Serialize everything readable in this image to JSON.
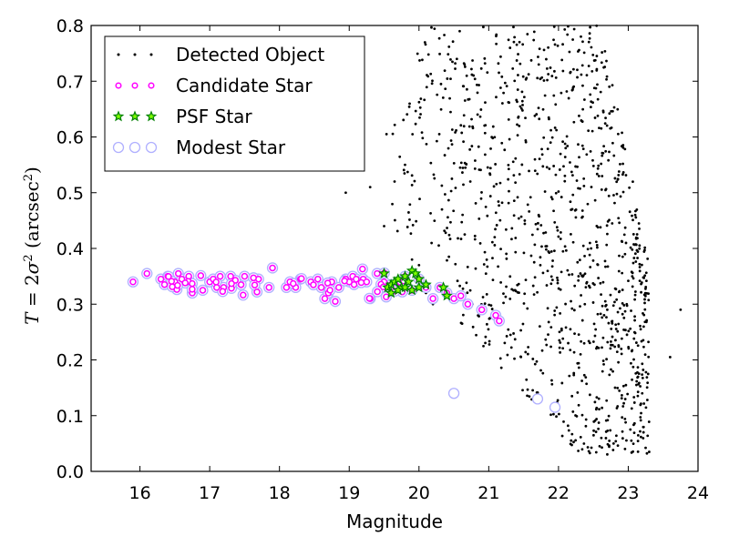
{
  "chart_data": {
    "type": "scatter",
    "xlabel": "Magnitude",
    "ylabel": {
      "T": "T",
      "eq": " = 2",
      "sigma": "σ",
      "sq": "2",
      "unit_open": " (arcsec",
      "unit_sq": "2",
      "unit_close": ")"
    },
    "xlim": [
      15.3,
      24
    ],
    "ylim": [
      0,
      0.8
    ],
    "xticks": [
      16,
      17,
      18,
      19,
      20,
      21,
      22,
      23,
      24
    ],
    "yticks": [
      0.0,
      0.1,
      0.2,
      0.3,
      0.4,
      0.5,
      0.6,
      0.7,
      0.8
    ],
    "ytick_labels": [
      "0.0",
      "0.1",
      "0.2",
      "0.3",
      "0.4",
      "0.5",
      "0.6",
      "0.7",
      "0.8"
    ],
    "grid": false,
    "legend_position": "top-left",
    "colors": {
      "detected": "#000000",
      "candidate_edge": "#ff00ff",
      "psf_edge": "#008000",
      "psf_face": "#7fff00",
      "modest_edge": "#b0b0ff"
    },
    "legend": [
      {
        "key": "modest",
        "label": "Modest Star",
        "marker": "circle-open"
      },
      {
        "key": "candidate",
        "label": "Candidate Star",
        "marker": "dot-magenta"
      },
      {
        "key": "psf",
        "label": "PSF Star",
        "marker": "star-green"
      },
      {
        "key": "detected",
        "label": "Detected Object",
        "marker": "dot-black"
      }
    ],
    "series": {
      "candidate_stellar_locus": {
        "x": [
          15.9,
          16.1,
          16.3,
          16.4,
          16.5,
          16.55,
          16.6,
          16.7,
          16.75,
          16.9,
          17.0,
          17.05,
          17.1,
          17.15,
          17.2,
          17.3,
          17.45,
          17.5,
          17.7,
          17.85,
          17.9,
          18.1,
          18.15,
          18.3,
          18.45,
          18.55,
          18.6,
          18.65,
          18.7,
          18.75,
          18.8,
          18.85,
          18.95,
          19.0,
          19.05,
          19.1,
          19.2,
          19.25,
          19.3,
          19.4,
          19.5,
          19.6,
          19.7,
          19.8,
          19.9,
          20.0,
          20.1,
          20.2,
          20.3,
          20.4,
          20.5,
          20.6,
          20.7,
          20.9,
          21.1,
          21.15
        ],
        "y": [
          0.34,
          0.355,
          0.345,
          0.35,
          0.34,
          0.355,
          0.345,
          0.35,
          0.32,
          0.325,
          0.34,
          0.345,
          0.33,
          0.35,
          0.33,
          0.35,
          0.335,
          0.35,
          0.345,
          0.33,
          0.365,
          0.33,
          0.34,
          0.345,
          0.34,
          0.345,
          0.33,
          0.31,
          0.32,
          0.34,
          0.305,
          0.33,
          0.345,
          0.34,
          0.35,
          0.345,
          0.345,
          0.34,
          0.31,
          0.355,
          0.34,
          0.335,
          0.34,
          0.35,
          0.325,
          0.345,
          0.33,
          0.31,
          0.33,
          0.32,
          0.31,
          0.315,
          0.3,
          0.29,
          0.28,
          0.27
        ]
      },
      "psf_stars": {
        "x": [
          19.5,
          19.55,
          19.6,
          19.65,
          19.7,
          19.75,
          19.8,
          19.85,
          19.9,
          19.95,
          20.0,
          20.0,
          19.9,
          19.8,
          19.7,
          19.6,
          20.1,
          20.35,
          20.4
        ],
        "y": [
          0.355,
          0.33,
          0.335,
          0.34,
          0.345,
          0.33,
          0.35,
          0.34,
          0.36,
          0.355,
          0.345,
          0.33,
          0.325,
          0.33,
          0.325,
          0.32,
          0.335,
          0.33,
          0.315
        ]
      },
      "modest_outliers": {
        "x": [
          20.5,
          21.7,
          21.95
        ],
        "y": [
          0.14,
          0.13,
          0.115
        ]
      },
      "detected_extra": {
        "x": [
          18.95,
          19.3,
          19.5,
          19.65,
          19.7,
          19.8,
          19.9,
          20.0,
          20.1,
          20.2,
          23.6,
          23.75,
          23.3,
          23.2,
          23.1
        ],
        "y": [
          0.5,
          0.51,
          0.44,
          0.52,
          0.33,
          0.55,
          0.38,
          0.37,
          0.32,
          0.3,
          0.205,
          0.29,
          0.035,
          0.14,
          0.46
        ]
      }
    }
  }
}
